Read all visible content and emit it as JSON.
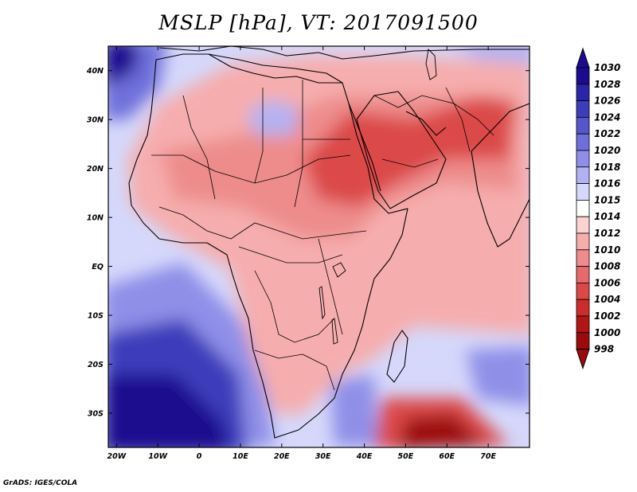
{
  "title": "MSLP [hPa], VT: 2017091500",
  "credit": "GrADS: IGES/COLA",
  "lat_axis": [
    "40N",
    "30N",
    "20N",
    "10N",
    "EQ",
    "10S",
    "20S",
    "30S"
  ],
  "lat_values": [
    40,
    30,
    20,
    10,
    0,
    -10,
    -20,
    -30
  ],
  "lon_axis": [
    "20W",
    "10W",
    "0",
    "10E",
    "20E",
    "30E",
    "40E",
    "50E",
    "60E",
    "70E"
  ],
  "lon_values": [
    -20,
    -10,
    0,
    10,
    20,
    30,
    40,
    50,
    60,
    70
  ],
  "map_extent": {
    "lon_min": -22,
    "lon_max": 80,
    "lat_min": -37,
    "lat_max": 45
  },
  "colorbar": {
    "top_label": "1030",
    "levels": [
      "1028",
      "1026",
      "1024",
      "1022",
      "1020",
      "1018",
      "1016",
      "1015",
      "1014",
      "1012",
      "1010",
      "1008",
      "1006",
      "1004",
      "1002",
      "1000",
      "998"
    ],
    "colors": [
      "#1d0b8f",
      "#2a25a8",
      "#3d3dbb",
      "#5656cc",
      "#6f6fdb",
      "#8f8fe8",
      "#b2b2f2",
      "#d5d8fb",
      "#ffffff",
      "#fbd3d3",
      "#f6adad",
      "#ee8c8c",
      "#e56b6b",
      "#dc4848",
      "#cc2c2c",
      "#b31414",
      "#9c0b0b"
    ],
    "top_color": "#1d0b8f",
    "bottom_color": "#9c0b0b"
  },
  "colors": {
    "ocean_mid": "#d5d8fb",
    "land_base": "#f6adad",
    "deep_blue": "#1d0b8f",
    "deep_red": "#9c0b0b"
  }
}
